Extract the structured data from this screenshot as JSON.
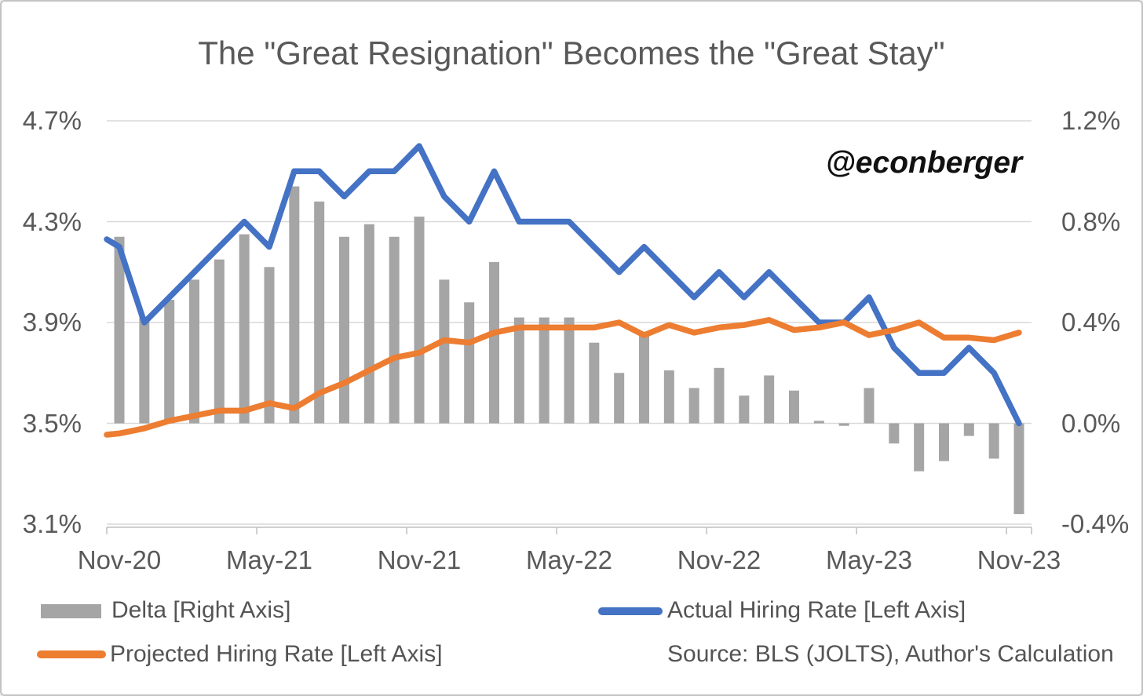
{
  "title": "The \"Great Resignation\" Becomes the \"Great Stay\"",
  "watermark": "@econberger",
  "legend": {
    "delta_label": "Delta [Right Axis]",
    "actual_label": "Actual Hiring Rate [Left Axis]",
    "projected_label": "Projected Hiring Rate [Left Axis]",
    "source_label": "Source: BLS (JOLTS), Author's Calculation"
  },
  "colors": {
    "actual_blue": "#4472C4",
    "projected_orange": "#ED7D31",
    "delta_gray": "#A5A5A5",
    "text_gray": "#595959",
    "gridline": "#D9D9D9",
    "axis_line": "#BFBFBF"
  },
  "left_axis": {
    "tick_labels": [
      "4.7%",
      "4.3%",
      "3.9%",
      "3.5%",
      "3.1%"
    ],
    "max": 4.7,
    "min": 3.1
  },
  "right_axis": {
    "tick_labels": [
      "1.2%",
      "0.8%",
      "0.4%",
      "0.0%",
      "-0.4%"
    ],
    "max": 1.2,
    "min": -0.4
  },
  "x_axis": {
    "tick_labels": [
      "Nov-20",
      "May-21",
      "Nov-21",
      "May-22",
      "Nov-22",
      "May-23",
      "Nov-23"
    ],
    "label_month_indices": [
      0,
      6,
      12,
      18,
      24,
      30,
      36
    ]
  },
  "chart_data": {
    "type": "combo",
    "months": [
      "Nov-20",
      "Dec-20",
      "Jan-21",
      "Feb-21",
      "Mar-21",
      "Apr-21",
      "May-21",
      "Jun-21",
      "Jul-21",
      "Aug-21",
      "Sep-21",
      "Oct-21",
      "Nov-21",
      "Dec-21",
      "Jan-22",
      "Feb-22",
      "Mar-22",
      "Apr-22",
      "May-22",
      "Jun-22",
      "Jul-22",
      "Aug-22",
      "Sep-22",
      "Oct-22",
      "Nov-22",
      "Dec-22",
      "Jan-23",
      "Feb-23",
      "Mar-23",
      "Apr-23",
      "May-23",
      "Jun-23",
      "Jul-23",
      "Aug-23",
      "Sep-23",
      "Oct-23",
      "Nov-23"
    ],
    "series": [
      {
        "name": "Delta [Right Axis]",
        "type": "bar",
        "axis": "right",
        "values": [
          0.74,
          0.42,
          0.49,
          0.57,
          0.65,
          0.75,
          0.62,
          0.94,
          0.88,
          0.74,
          0.79,
          0.74,
          0.82,
          0.57,
          0.48,
          0.64,
          0.42,
          0.42,
          0.42,
          0.32,
          0.2,
          0.35,
          0.21,
          0.14,
          0.22,
          0.11,
          0.19,
          0.13,
          0.01,
          -0.01,
          0.14,
          -0.08,
          -0.19,
          -0.15,
          -0.05,
          -0.14,
          -0.36
        ]
      },
      {
        "name": "Actual Hiring Rate [Left Axis]",
        "type": "line",
        "axis": "left",
        "edge_lead_in": 4.23,
        "values": [
          4.2,
          3.9,
          4.0,
          4.1,
          4.2,
          4.3,
          4.2,
          4.5,
          4.5,
          4.4,
          4.5,
          4.5,
          4.6,
          4.4,
          4.3,
          4.5,
          4.3,
          4.3,
          4.3,
          4.2,
          4.1,
          4.2,
          4.1,
          4.0,
          4.1,
          4.0,
          4.1,
          4.0,
          3.9,
          3.9,
          4.0,
          3.8,
          3.7,
          3.7,
          3.8,
          3.7,
          3.5
        ]
      },
      {
        "name": "Projected Hiring Rate [Left Axis]",
        "type": "line",
        "axis": "left",
        "edge_lead_in": 3.455,
        "values": [
          3.46,
          3.48,
          3.51,
          3.53,
          3.55,
          3.55,
          3.58,
          3.56,
          3.62,
          3.66,
          3.71,
          3.76,
          3.78,
          3.83,
          3.82,
          3.86,
          3.88,
          3.88,
          3.88,
          3.88,
          3.9,
          3.85,
          3.89,
          3.86,
          3.88,
          3.89,
          3.91,
          3.87,
          3.88,
          3.9,
          3.85,
          3.87,
          3.9,
          3.84,
          3.84,
          3.83,
          3.86
        ]
      }
    ],
    "left_axis_range": [
      3.1,
      4.7
    ],
    "right_axis_range": [
      -0.4,
      1.2
    ],
    "grid": true,
    "legend_position": "bottom"
  }
}
